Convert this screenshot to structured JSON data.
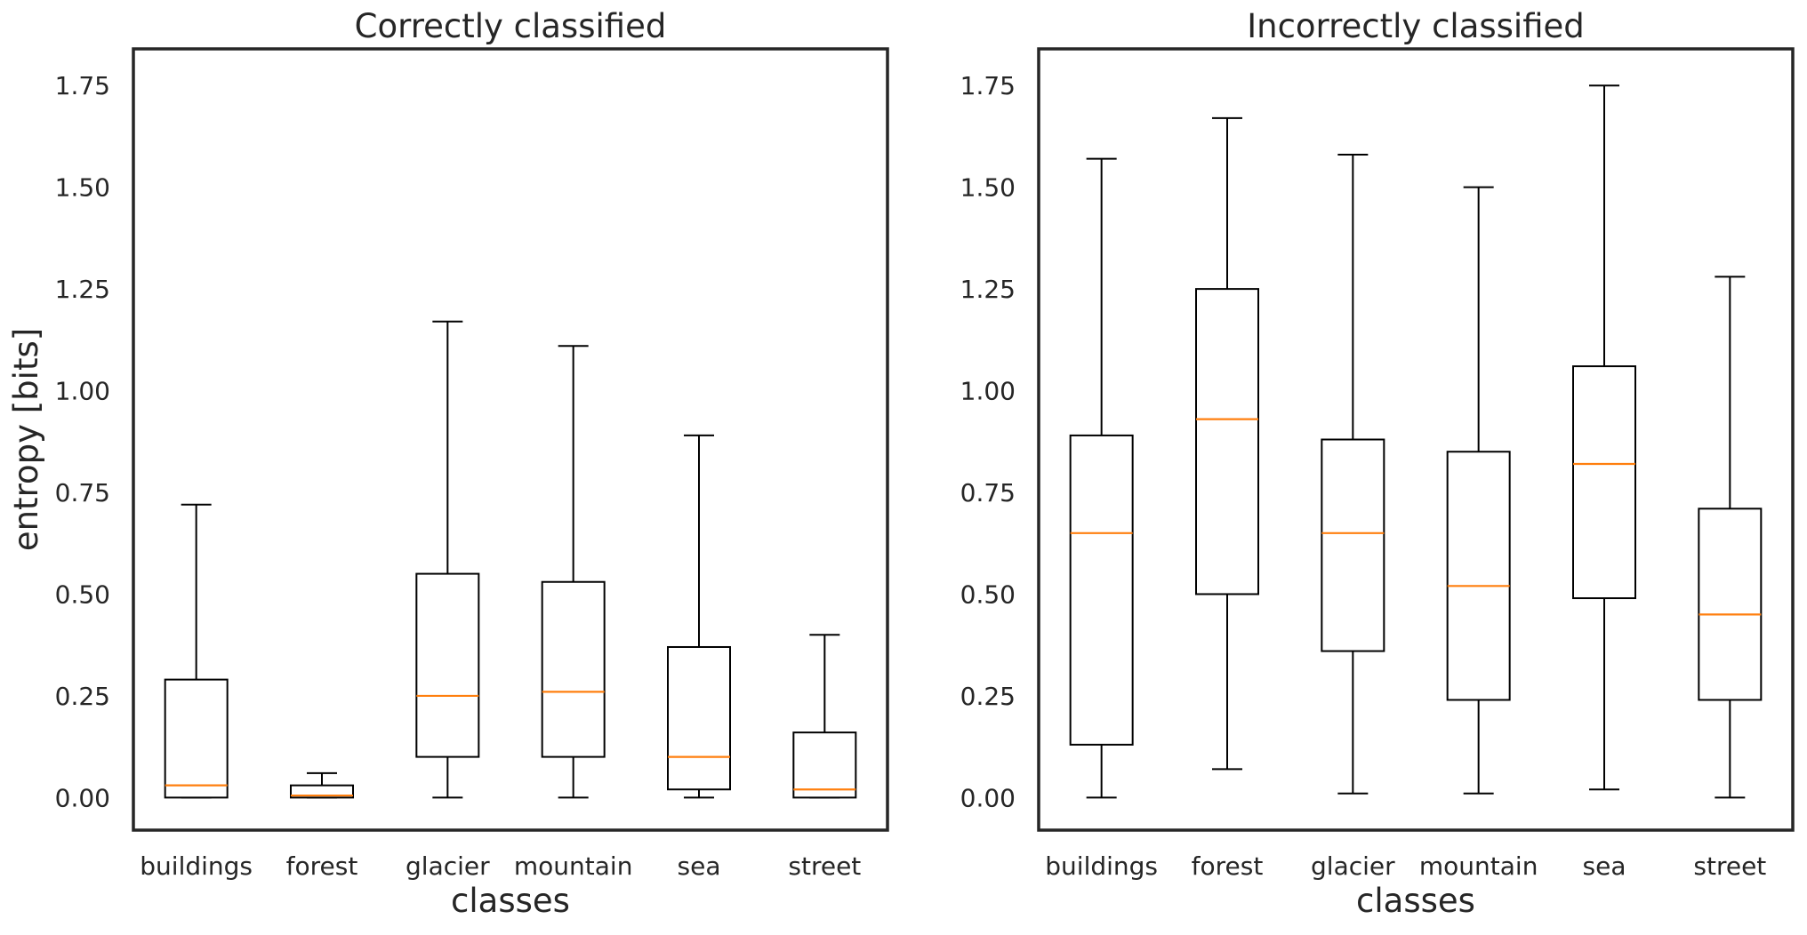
{
  "chart_data": [
    {
      "type": "box",
      "title": "Correctly classified",
      "xlabel": "classes",
      "ylabel": "entropy [bits]",
      "categories": [
        "buildings",
        "forest",
        "glacier",
        "mountain",
        "sea",
        "street"
      ],
      "yticks": [
        "0.00",
        "0.25",
        "0.50",
        "0.75",
        "1.00",
        "1.25",
        "1.50",
        "1.75"
      ],
      "ylim": [
        -0.08,
        1.84
      ],
      "boxes": [
        {
          "whisker_low": 0.0,
          "q1": 0.0,
          "median": 0.03,
          "q3": 0.29,
          "whisker_high": 0.72
        },
        {
          "whisker_low": 0.0,
          "q1": 0.0,
          "median": 0.005,
          "q3": 0.03,
          "whisker_high": 0.06
        },
        {
          "whisker_low": 0.0,
          "q1": 0.1,
          "median": 0.25,
          "q3": 0.55,
          "whisker_high": 1.17
        },
        {
          "whisker_low": 0.0,
          "q1": 0.1,
          "median": 0.26,
          "q3": 0.53,
          "whisker_high": 1.11
        },
        {
          "whisker_low": 0.0,
          "q1": 0.02,
          "median": 0.1,
          "q3": 0.37,
          "whisker_high": 0.89
        },
        {
          "whisker_low": 0.0,
          "q1": 0.0,
          "median": 0.02,
          "q3": 0.16,
          "whisker_high": 0.4
        }
      ],
      "grid": false
    },
    {
      "type": "box",
      "title": "Incorrectly classified",
      "xlabel": "classes",
      "ylabel": "",
      "categories": [
        "buildings",
        "forest",
        "glacier",
        "mountain",
        "sea",
        "street"
      ],
      "yticks": [
        "0.00",
        "0.25",
        "0.50",
        "0.75",
        "1.00",
        "1.25",
        "1.50",
        "1.75"
      ],
      "ylim": [
        -0.08,
        1.84
      ],
      "boxes": [
        {
          "whisker_low": 0.0,
          "q1": 0.13,
          "median": 0.65,
          "q3": 0.89,
          "whisker_high": 1.57
        },
        {
          "whisker_low": 0.07,
          "q1": 0.5,
          "median": 0.93,
          "q3": 1.25,
          "whisker_high": 1.67
        },
        {
          "whisker_low": 0.01,
          "q1": 0.36,
          "median": 0.65,
          "q3": 0.88,
          "whisker_high": 1.58
        },
        {
          "whisker_low": 0.01,
          "q1": 0.24,
          "median": 0.52,
          "q3": 0.85,
          "whisker_high": 1.5
        },
        {
          "whisker_low": 0.02,
          "q1": 0.49,
          "median": 0.82,
          "q3": 1.06,
          "whisker_high": 1.75
        },
        {
          "whisker_low": 0.0,
          "q1": 0.24,
          "median": 0.45,
          "q3": 0.71,
          "whisker_high": 1.28
        }
      ],
      "grid": false
    }
  ],
  "colors": {
    "box_edge": "#000000",
    "median": "#ff7f0e",
    "frame": "#262626",
    "text": "#262626",
    "background": "#ffffff"
  }
}
